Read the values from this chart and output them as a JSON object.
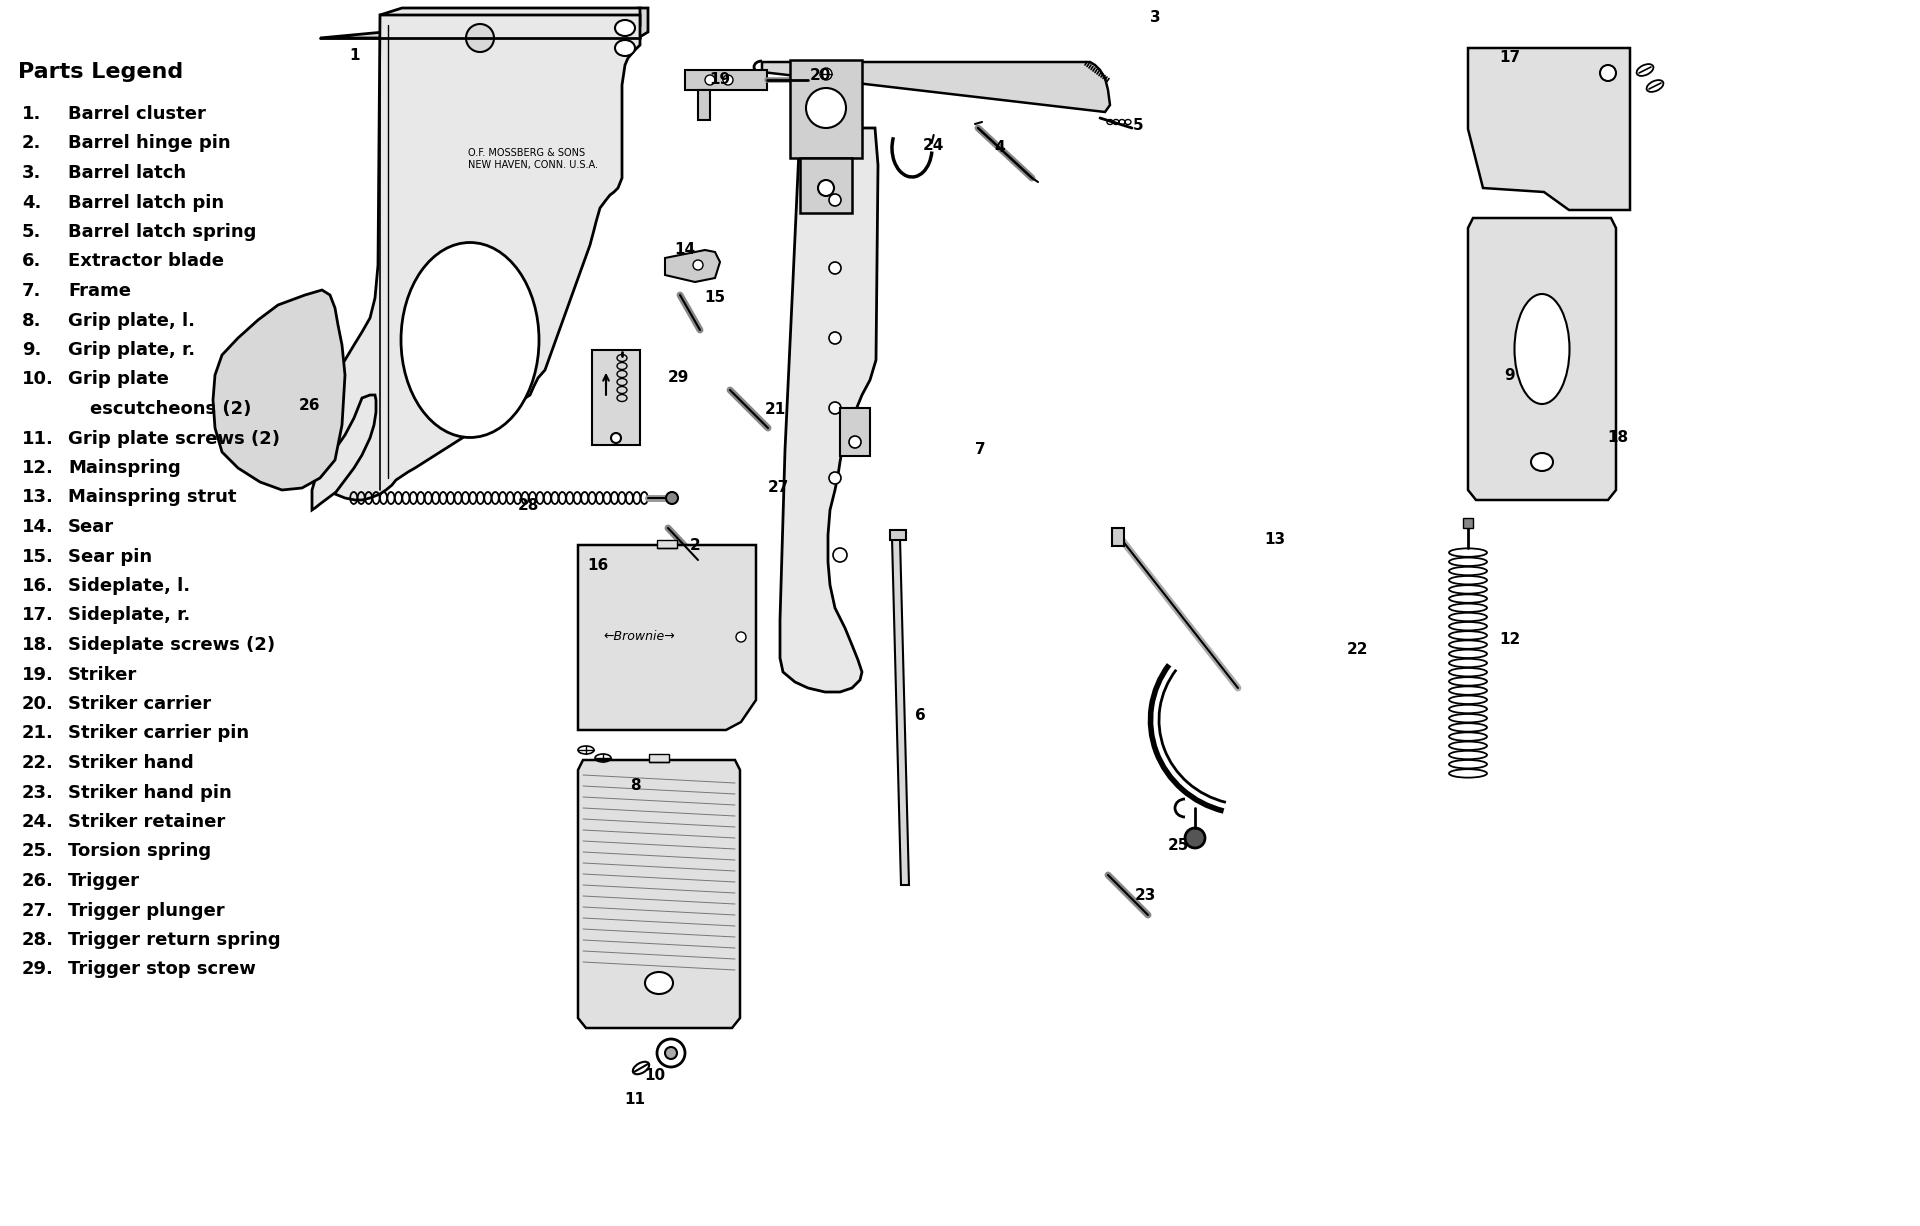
{
  "bg": "#ffffff",
  "legend_title": "Parts Legend",
  "parts": [
    [
      "1.",
      "Barrel cluster"
    ],
    [
      "2.",
      "Barrel hinge pin"
    ],
    [
      "3.",
      "Barrel latch"
    ],
    [
      "4.",
      "Barrel latch pin"
    ],
    [
      "5.",
      "Barrel latch spring"
    ],
    [
      "6.",
      "Extractor blade"
    ],
    [
      "7.",
      "Frame"
    ],
    [
      "8.",
      "Grip plate, l."
    ],
    [
      "9.",
      "Grip plate, r."
    ],
    [
      "10.",
      "Grip plate"
    ],
    [
      "",
      "escutcheons (2)"
    ],
    [
      "11.",
      "Grip plate screws (2)"
    ],
    [
      "12.",
      "Mainspring"
    ],
    [
      "13.",
      "Mainspring strut"
    ],
    [
      "14.",
      "Sear"
    ],
    [
      "15.",
      "Sear pin"
    ],
    [
      "16.",
      "Sideplate, l."
    ],
    [
      "17.",
      "Sideplate, r."
    ],
    [
      "18.",
      "Sideplate screws (2)"
    ],
    [
      "19.",
      "Striker"
    ],
    [
      "20.",
      "Striker carrier"
    ],
    [
      "21.",
      "Striker carrier pin"
    ],
    [
      "22.",
      "Striker hand"
    ],
    [
      "23.",
      "Striker hand pin"
    ],
    [
      "24.",
      "Striker retainer"
    ],
    [
      "25.",
      "Torsion spring"
    ],
    [
      "26.",
      "Trigger"
    ],
    [
      "27.",
      "Trigger plunger"
    ],
    [
      "28.",
      "Trigger return spring"
    ],
    [
      "29.",
      "Trigger stop screw"
    ]
  ],
  "num_labels": [
    [
      355,
      55,
      "1"
    ],
    [
      695,
      545,
      "2"
    ],
    [
      1155,
      18,
      "3"
    ],
    [
      1000,
      148,
      "4"
    ],
    [
      1138,
      125,
      "5"
    ],
    [
      920,
      715,
      "6"
    ],
    [
      980,
      450,
      "7"
    ],
    [
      635,
      785,
      "8"
    ],
    [
      1510,
      375,
      "9"
    ],
    [
      655,
      1075,
      "10"
    ],
    [
      635,
      1100,
      "11"
    ],
    [
      1510,
      640,
      "12"
    ],
    [
      1275,
      540,
      "13"
    ],
    [
      685,
      250,
      "14"
    ],
    [
      715,
      298,
      "15"
    ],
    [
      598,
      565,
      "16"
    ],
    [
      1510,
      58,
      "17"
    ],
    [
      1618,
      438,
      "18"
    ],
    [
      720,
      80,
      "19"
    ],
    [
      820,
      75,
      "20"
    ],
    [
      775,
      410,
      "21"
    ],
    [
      1358,
      650,
      "22"
    ],
    [
      1145,
      895,
      "23"
    ],
    [
      933,
      145,
      "24"
    ],
    [
      1178,
      845,
      "25"
    ],
    [
      310,
      405,
      "26"
    ],
    [
      778,
      488,
      "27"
    ],
    [
      528,
      505,
      "28"
    ],
    [
      678,
      378,
      "29"
    ]
  ]
}
